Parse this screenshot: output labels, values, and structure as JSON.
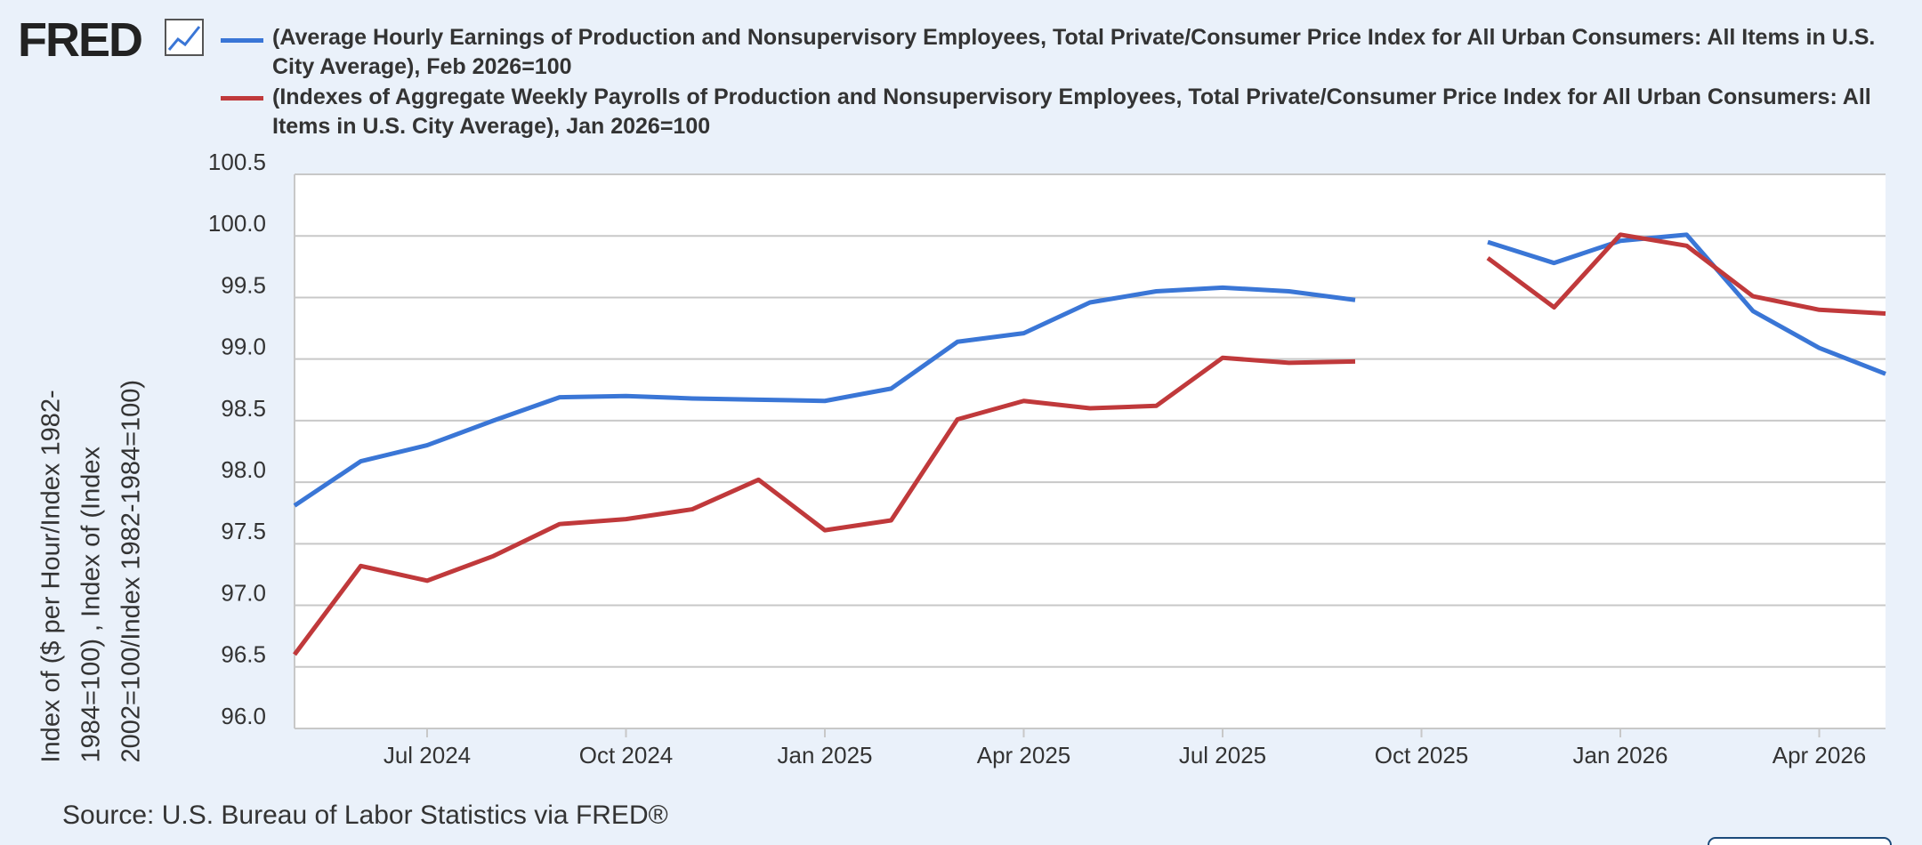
{
  "logo": "FRED",
  "chart_data": {
    "type": "line",
    "y_axis_label": "Index of ($ per Hour/Index 1982-1984=100) , Index of (Index 2002=100/Index 1982-1984=100)",
    "source": "Source: U.S. Bureau of Labor Statistics via FRED®",
    "x": [
      "2024-05",
      "2024-06",
      "2024-07",
      "2024-08",
      "2024-09",
      "2024-10",
      "2024-11",
      "2024-12",
      "2025-01",
      "2025-02",
      "2025-03",
      "2025-04",
      "2025-05",
      "2025-06",
      "2025-07",
      "2025-08",
      "2025-09",
      "2025-10",
      "2025-11",
      "2025-12",
      "2026-01",
      "2026-02",
      "2026-03",
      "2026-04",
      "2026-05"
    ],
    "series": [
      {
        "name": "(Average Hourly Earnings of Production and Nonsupervisory Employees, Total Private/Consumer Price Index for All Urban Consumers: All Items in U.S. City Average), Feb 2026=100",
        "color": "#3a76d6",
        "values": [
          97.81,
          98.17,
          98.3,
          98.5,
          98.69,
          98.7,
          98.68,
          98.67,
          98.66,
          98.76,
          99.14,
          99.21,
          99.46,
          99.55,
          99.58,
          99.55,
          99.48,
          null,
          99.95,
          99.78,
          99.96,
          100.01,
          99.39,
          99.09,
          98.88
        ]
      },
      {
        "name": "(Indexes of Aggregate Weekly Payrolls of Production and Nonsupervisory Employees, Total Private/Consumer Price Index for All Urban Consumers: All Items in U.S. City Average), Jan 2026=100",
        "color": "#c0393b",
        "values": [
          96.6,
          97.32,
          97.2,
          97.4,
          97.66,
          97.7,
          97.78,
          98.02,
          97.61,
          97.69,
          98.51,
          98.66,
          98.6,
          98.62,
          99.01,
          98.97,
          98.98,
          null,
          99.82,
          99.42,
          100.01,
          99.92,
          99.51,
          99.4,
          99.37
        ]
      }
    ],
    "xlim": [
      "2024-05",
      "2026-05"
    ],
    "xticks": [
      {
        "value": "2024-07",
        "label": "Jul 2024"
      },
      {
        "value": "2024-10",
        "label": "Oct 2024"
      },
      {
        "value": "2025-01",
        "label": "Jan 2025"
      },
      {
        "value": "2025-04",
        "label": "Apr 2025"
      },
      {
        "value": "2025-07",
        "label": "Jul 2025"
      },
      {
        "value": "2025-10",
        "label": "Oct 2025"
      },
      {
        "value": "2026-01",
        "label": "Jan 2026"
      },
      {
        "value": "2026-04",
        "label": "Apr 2026"
      }
    ],
    "ylim": [
      96.0,
      100.5
    ],
    "yticks": [
      {
        "value": 96,
        "label": "96.0"
      },
      96.5,
      {
        "value": 97,
        "label": "97.0"
      },
      97.5,
      {
        "value": 98,
        "label": "98.0"
      },
      98.5,
      {
        "value": 99,
        "label": "99.0"
      },
      99.5,
      {
        "value": 100,
        "label": "100.0"
      },
      100.5
    ],
    "grid": true
  }
}
